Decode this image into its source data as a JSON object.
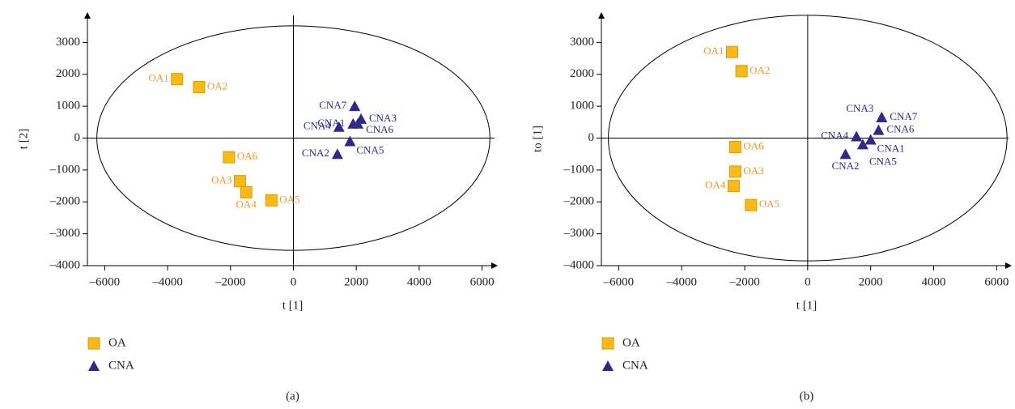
{
  "chart_data": [
    {
      "type": "scatter",
      "x_label": "t [1]",
      "y_label": "t [2]",
      "caption": "(a)",
      "xlim": [
        -6550,
        6500
      ],
      "ylim": [
        -4000,
        3950
      ],
      "xticks": [
        {
          "value": -6000,
          "label": "–6000"
        },
        {
          "value": -4000,
          "label": "–4000"
        },
        {
          "value": -2000,
          "label": "–2000"
        },
        0,
        2000,
        4000,
        6000
      ],
      "yticks": [
        {
          "value": -4000,
          "label": "–4000"
        },
        {
          "value": -3000,
          "label": "–3000"
        },
        {
          "value": -2000,
          "label": "–2000"
        },
        {
          "value": -1000,
          "label": "–1000"
        },
        0,
        1000,
        2000,
        3000
      ],
      "ellipse_radii": [
        6250,
        3520
      ],
      "series": [
        {
          "name": "OA",
          "color": "#fbb917",
          "marker": "square",
          "labels": [
            "OA1",
            "OA2",
            "OA3",
            "OA4",
            "OA5",
            "OA6"
          ],
          "x": [
            -3700,
            -3000,
            -1700,
            -1500,
            -700,
            -2050
          ],
          "values": [
            1850,
            1600,
            -1350,
            -1700,
            -1950,
            -600
          ]
        },
        {
          "name": "CNA",
          "color": "#2e2a8c",
          "marker": "triangle",
          "labels": [
            "CNA1",
            "CNA2",
            "CNA3",
            "CNA4",
            "CNA5",
            "CNA6",
            "CNA7"
          ],
          "x": [
            1900,
            1400,
            2150,
            1450,
            1800,
            2050,
            1950
          ],
          "values": [
            450,
            -500,
            600,
            350,
            -100,
            450,
            1000
          ]
        }
      ]
    },
    {
      "type": "scatter",
      "x_label": "t [1]",
      "y_label": "to [1]",
      "caption": "(b)",
      "xlim": [
        -6550,
        6480
      ],
      "ylim": [
        -4000,
        3950
      ],
      "xticks": [
        {
          "value": -6000,
          "label": "–6000"
        },
        {
          "value": -4000,
          "label": "–4000"
        },
        {
          "value": -2000,
          "label": "–2000"
        },
        0,
        2000,
        4000,
        6000
      ],
      "yticks": [
        {
          "value": -4000,
          "label": "–4000"
        },
        {
          "value": -3000,
          "label": "–3000"
        },
        {
          "value": -2000,
          "label": "–2000"
        },
        {
          "value": -1000,
          "label": "–1000"
        },
        0,
        1000,
        2000,
        3000
      ],
      "ellipse_radii": [
        6330,
        3850
      ],
      "series": [
        {
          "name": "OA",
          "color": "#fbb917",
          "marker": "square",
          "labels": [
            "OA1",
            "OA2",
            "OA3",
            "OA4",
            "OA5",
            "OA6"
          ],
          "x": [
            -2400,
            -2100,
            -2300,
            -2350,
            -1800,
            -2300
          ],
          "values": [
            2700,
            2100,
            -1050,
            -1500,
            -2100,
            -280
          ]
        },
        {
          "name": "CNA",
          "color": "#2e2a8c",
          "marker": "triangle",
          "labels": [
            "CNA1",
            "CNA2",
            "CNA3",
            "CNA4",
            "CNA5",
            "CNA6",
            "CNA7"
          ],
          "x": [
            2000,
            1200,
            2350,
            1550,
            1750,
            2250,
            2350
          ],
          "values": [
            -50,
            -500,
            650,
            50,
            -200,
            250,
            650
          ]
        }
      ]
    }
  ]
}
